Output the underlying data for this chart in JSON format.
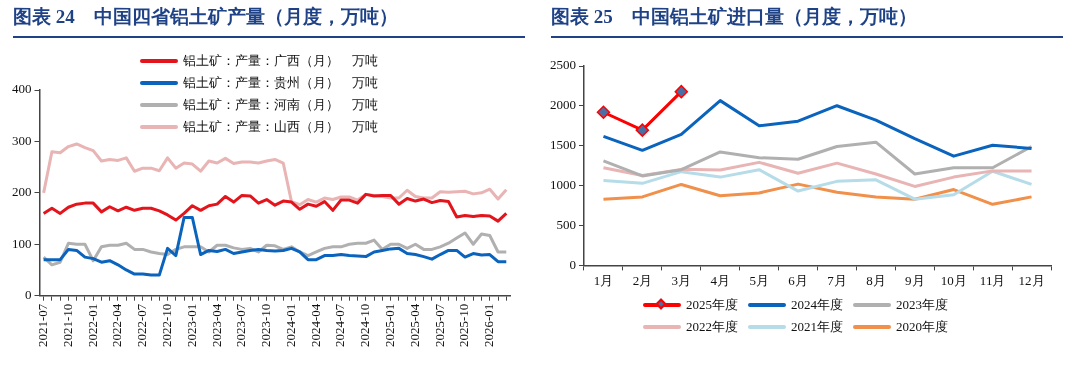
{
  "chart_data": [
    {
      "type": "line",
      "title": "图表 24　中国四省铝土矿产量（月度，万吨）",
      "categories": [
        "2021-07",
        null,
        null,
        "2021-10",
        null,
        null,
        "2022-01",
        null,
        null,
        "2022-04",
        null,
        null,
        "2022-07",
        null,
        null,
        "2022-10",
        null,
        null,
        "2023-01",
        null,
        null,
        "2023-04",
        null,
        null,
        "2023-07",
        null,
        null,
        "2023-10",
        null,
        null,
        "2024-01",
        null,
        null,
        "2024-04",
        null,
        null,
        "2024-07",
        null,
        null,
        "2024-10",
        null,
        null,
        "2025-01",
        null,
        null,
        "2025-04",
        null,
        null,
        "2025-07",
        null,
        null,
        "2025-10",
        null,
        null,
        "2026-01",
        null,
        null
      ],
      "ylim": [
        0,
        400
      ],
      "yticks": [
        0,
        100,
        200,
        300,
        400
      ],
      "grid": false,
      "legend": "top",
      "series": [
        {
          "name": "铝土矿：产量：广西（月）　万吨",
          "color": "#e3141c",
          "values": [
            160,
            170,
            160,
            172,
            178,
            180,
            180,
            163,
            173,
            165,
            172,
            166,
            170,
            170,
            165,
            157,
            147,
            160,
            175,
            166,
            175,
            178,
            193,
            182,
            195,
            194,
            180,
            187,
            176,
            184,
            182,
            168,
            178,
            174,
            183,
            166,
            186,
            186,
            180,
            197,
            194,
            195,
            195,
            178,
            189,
            184,
            188,
            181,
            185,
            183,
            153,
            156,
            154,
            156,
            155,
            145,
            160
          ]
        },
        {
          "name": "铝土矿：产量：贵州（月）　万吨",
          "color": "#0a63bd",
          "values": [
            70,
            70,
            70,
            90,
            88,
            75,
            72,
            65,
            68,
            60,
            50,
            42,
            42,
            40,
            40,
            92,
            78,
            152,
            152,
            80,
            88,
            86,
            90,
            82,
            85,
            88,
            90,
            88,
            87,
            88,
            92,
            85,
            70,
            70,
            78,
            78,
            80,
            78,
            77,
            76,
            85,
            88,
            91,
            92,
            82,
            80,
            76,
            71,
            80,
            88,
            88,
            75,
            82,
            79,
            80,
            66,
            66
          ]
        },
        {
          "name": "铝土矿：产量：河南（月）　万吨",
          "color": "#b0b0b0",
          "values": [
            75,
            60,
            65,
            102,
            100,
            100,
            68,
            95,
            98,
            98,
            102,
            90,
            90,
            85,
            82,
            80,
            90,
            95,
            95,
            95,
            85,
            98,
            98,
            93,
            90,
            92,
            85,
            98,
            97,
            90,
            95,
            85,
            78,
            85,
            92,
            95,
            95,
            100,
            102,
            102,
            108,
            90,
            100,
            100,
            92,
            100,
            90,
            90,
            95,
            102,
            112,
            122,
            100,
            120,
            117,
            85,
            85
          ]
        },
        {
          "name": "铝土矿：产量：山西（月）　万吨",
          "color": "#e8b4b4",
          "values": [
            200,
            280,
            278,
            290,
            295,
            288,
            282,
            262,
            265,
            263,
            268,
            242,
            248,
            248,
            243,
            268,
            248,
            258,
            256,
            242,
            262,
            258,
            267,
            257,
            260,
            260,
            258,
            262,
            265,
            258,
            183,
            177,
            187,
            182,
            190,
            187,
            192,
            192,
            186,
            197,
            195,
            193,
            190,
            190,
            205,
            193,
            190,
            190,
            202,
            201,
            202,
            203,
            198,
            200,
            207,
            188,
            206
          ]
        }
      ]
    },
    {
      "type": "line",
      "title": "图表 25　中国铝土矿进口量（月度，万吨）",
      "categories": [
        "1月",
        "2月",
        "3月",
        "4月",
        "5月",
        "6月",
        "7月",
        "8月",
        "9月",
        "10月",
        "11月",
        "12月"
      ],
      "ylim": [
        0,
        2500
      ],
      "yticks": [
        0,
        500,
        1000,
        1500,
        2000,
        2500
      ],
      "grid": false,
      "legend": "bottom",
      "series": [
        {
          "name": "2025年度",
          "color": "#ff0000",
          "marker": "diamond",
          "values": [
            1920,
            1696,
            2178,
            null,
            null,
            null,
            null,
            null,
            null,
            null,
            null,
            null
          ]
        },
        {
          "name": "2024年度",
          "color": "#0a63bd",
          "values": [
            1618,
            1443,
            1642,
            2066,
            1750,
            1808,
            2002,
            1822,
            1589,
            1370,
            1506,
            1467
          ]
        },
        {
          "name": "2023年度",
          "color": "#b0b0b0",
          "values": [
            1311,
            1122,
            1200,
            1423,
            1350,
            1331,
            1491,
            1545,
            1146,
            1224,
            1224,
            1491
          ]
        },
        {
          "name": "2022年度",
          "color": "#e8b4b4",
          "values": [
            1224,
            1127,
            1204,
            1195,
            1292,
            1156,
            1282,
            1146,
            990,
            1107,
            1185,
            1185
          ]
        },
        {
          "name": "2021年度",
          "color": "#b5dce8",
          "values": [
            1063,
            1029,
            1175,
            1107,
            1200,
            932,
            1054,
            1073,
            830,
            885,
            1180,
            1015
          ]
        },
        {
          "name": "2020年度",
          "color": "#f0904a",
          "values": [
            830,
            859,
            1015,
            873,
            908,
            1019,
            917,
            859,
            830,
            951,
            766,
            859
          ]
        }
      ]
    }
  ]
}
